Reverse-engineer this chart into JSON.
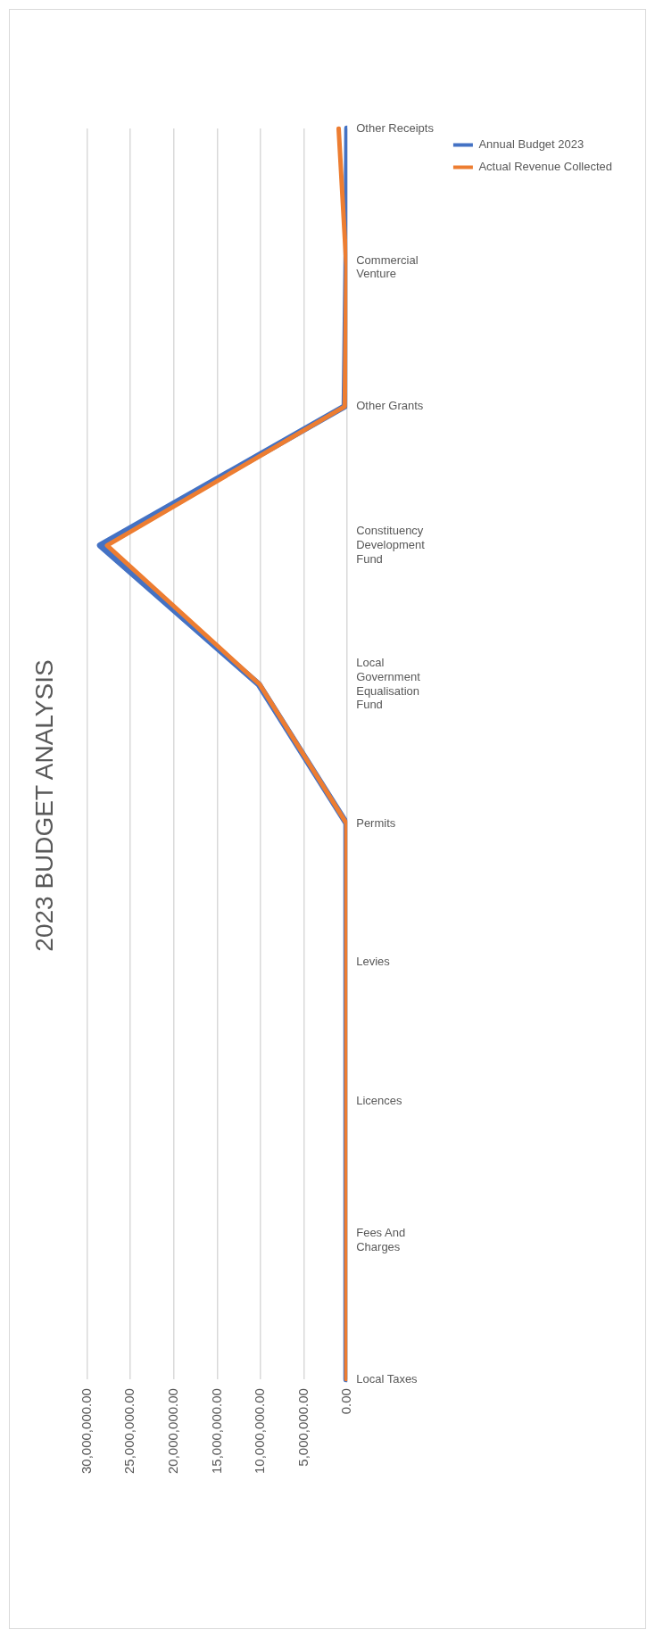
{
  "chart_data": {
    "type": "line",
    "title": "2023 BUDGET ANALYSIS",
    "orientation": "horizontal",
    "categories": [
      "Other Receipts",
      "Commercial Venture",
      "Other Grants",
      "Constituency Development Fund",
      "Local Government Equalisation Fund",
      "Permits",
      "Levies",
      "Licences",
      "Fees And Charges",
      "Local Taxes"
    ],
    "series": [
      {
        "name": "Annual Budget 2023",
        "color": "#4472c4",
        "values": [
          0,
          100000,
          300000,
          28500000,
          10200000,
          100000,
          100000,
          100000,
          100000,
          100000
        ]
      },
      {
        "name": "Actual Revenue Collected",
        "color": "#ed7d31",
        "values": [
          1000000,
          100000,
          300000,
          27700000,
          10100000,
          100000,
          100000,
          100000,
          100000,
          100000
        ]
      }
    ],
    "xlim": [
      30000000,
      0
    ],
    "xticks": [
      {
        "value": 30000000,
        "label": "30,000,000.00"
      },
      {
        "value": 25000000,
        "label": "25,000,000.00"
      },
      {
        "value": 20000000,
        "label": "20,000,000.00"
      },
      {
        "value": 15000000,
        "label": "15,000,000.00"
      },
      {
        "value": 10000000,
        "label": "10,000,000.00"
      },
      {
        "value": 5000000,
        "label": "5,000,000.00"
      },
      {
        "value": 0,
        "label": "0.00"
      }
    ],
    "grid": "x",
    "legend": "right",
    "marker": "none",
    "line_style": "solid"
  }
}
